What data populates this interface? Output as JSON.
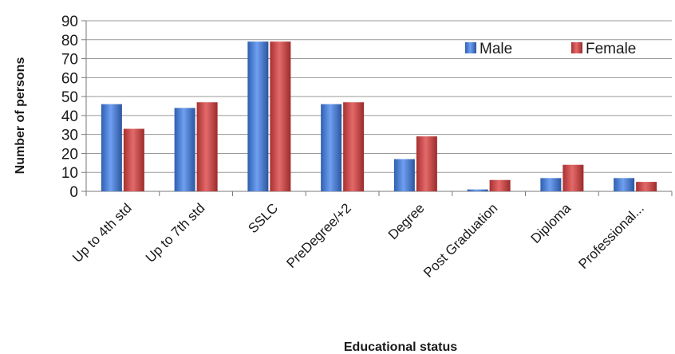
{
  "chart_data": {
    "type": "bar",
    "categories": [
      "Up to 4th std",
      "Up to 7th std",
      "SSLC",
      "PreDegree/+2",
      "Degree",
      "Post Graduation",
      "Diploma",
      "Professional..."
    ],
    "series": [
      {
        "name": "Male",
        "values": [
          46,
          44,
          79,
          46,
          17,
          1,
          7,
          7
        ],
        "color": "#4a7fd6"
      },
      {
        "name": "Female",
        "values": [
          33,
          47,
          79,
          47,
          29,
          6,
          14,
          5
        ],
        "color": "#d04848"
      }
    ],
    "xlabel": "Educational status",
    "ylabel": "Number of persons",
    "ylim": [
      0,
      90
    ],
    "yticks": [
      0,
      10,
      20,
      30,
      40,
      50,
      60,
      70,
      80,
      90
    ],
    "grid": true,
    "legend_position": "top-right"
  }
}
